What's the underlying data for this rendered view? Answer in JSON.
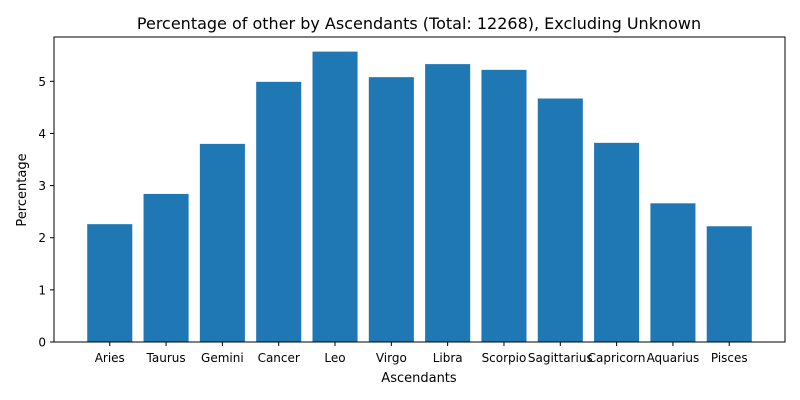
{
  "chart_data": {
    "type": "bar",
    "title": "Percentage of other by Ascendants (Total: 12268), Excluding Unknown",
    "xlabel": "Ascendants",
    "ylabel": "Percentage",
    "categories": [
      "Aries",
      "Taurus",
      "Gemini",
      "Cancer",
      "Leo",
      "Virgo",
      "Libra",
      "Scorpio",
      "Sagittarius",
      "Capricorn",
      "Aquarius",
      "Pisces"
    ],
    "values": [
      2.26,
      2.84,
      3.8,
      4.99,
      5.57,
      5.08,
      5.33,
      5.22,
      4.67,
      3.82,
      2.66,
      2.22
    ],
    "ylim": [
      0,
      5.85
    ],
    "yticks": [
      "0",
      "1",
      "2",
      "3",
      "4",
      "5"
    ],
    "grid": false,
    "bar_color": "#1f77b4"
  }
}
